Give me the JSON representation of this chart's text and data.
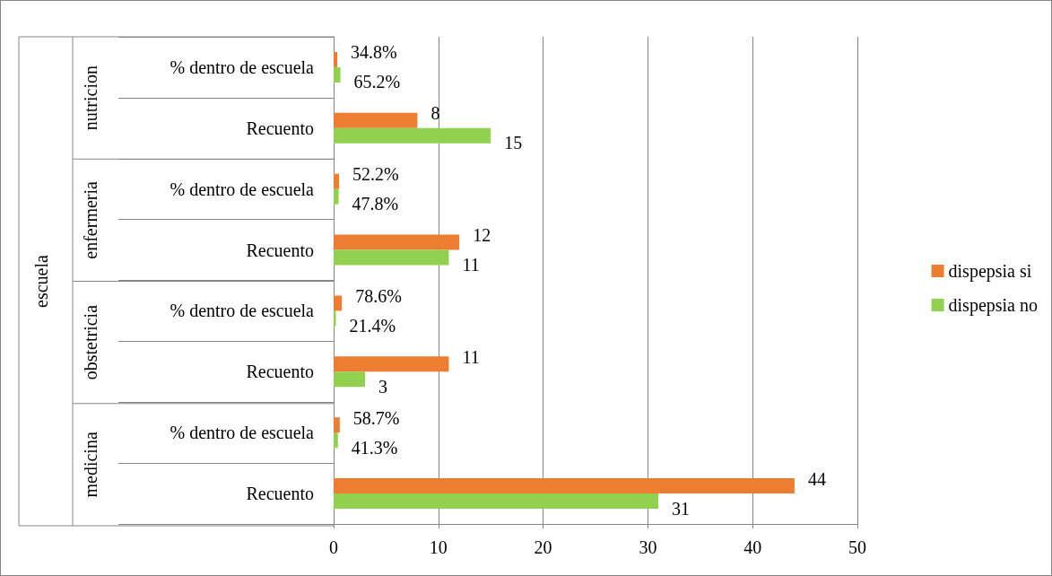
{
  "chart_data": {
    "type": "bar",
    "orientation": "horizontal",
    "categories": [
      "% dentro de escuela",
      "Recuento",
      "% dentro de escuela",
      "Recuento",
      "% dentro de escuela",
      "Recuento",
      "% dentro de escuela",
      "Recuento"
    ],
    "annotations": [
      "escuela",
      "nutricion",
      "enfermeria",
      "obstetricia",
      "medicina"
    ],
    "series": [
      {
        "name": "dispepsia si",
        "color": "#ed7d31",
        "values": [
          0.348,
          8,
          0.522,
          12,
          0.786,
          11,
          0.587,
          44
        ],
        "value_labels": [
          "34.8%",
          "8",
          "52.2%",
          "12",
          "78.6%",
          "11",
          "58.7%",
          "44"
        ]
      },
      {
        "name": "dispepsia no",
        "color": "#92d050",
        "values": [
          0.652,
          15,
          0.478,
          11,
          0.214,
          3,
          0.413,
          31
        ],
        "value_labels": [
          "65.2%",
          "15",
          "47.8%",
          "11",
          "21.4%",
          "3",
          "41.3%",
          "31"
        ]
      }
    ],
    "xlim": [
      0,
      50
    ],
    "xticks": [
      0,
      10,
      20,
      30,
      40,
      50
    ],
    "grid": "x",
    "legend": "right"
  }
}
